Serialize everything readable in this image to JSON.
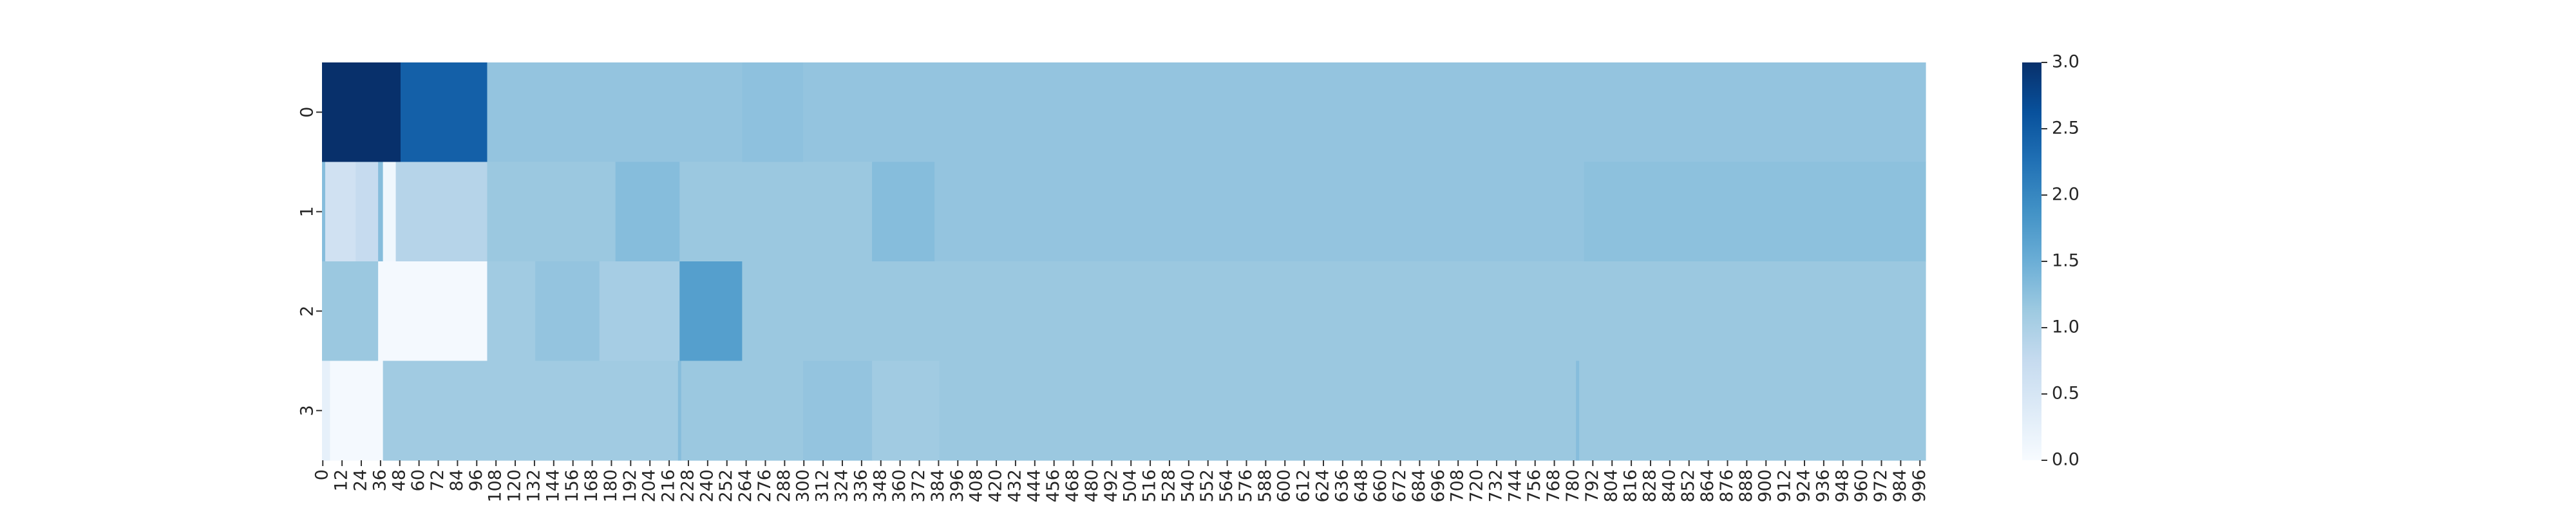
{
  "chart_data": {
    "type": "heatmap",
    "title": "",
    "xlabel": "",
    "ylabel": "",
    "rows": [
      "0",
      "1",
      "2",
      "3"
    ],
    "n_columns": 1000,
    "x_tick_step": 12,
    "x_tick_labels": [
      "0",
      "12",
      "24",
      "36",
      "48",
      "60",
      "72",
      "84",
      "96",
      "108",
      "120",
      "132",
      "144",
      "156",
      "168",
      "180",
      "192",
      "204",
      "216",
      "228",
      "240",
      "252",
      "264",
      "276",
      "288",
      "300",
      "312",
      "324",
      "336",
      "348",
      "360",
      "372",
      "384",
      "396",
      "408",
      "420",
      "432",
      "444",
      "456",
      "468",
      "480",
      "492",
      "504",
      "516",
      "528",
      "540",
      "552",
      "564",
      "576",
      "588",
      "600",
      "612",
      "624",
      "636",
      "648",
      "660",
      "672",
      "684",
      "696",
      "708",
      "720",
      "732",
      "744",
      "756",
      "768",
      "780",
      "792",
      "804",
      "816",
      "828",
      "840",
      "852",
      "864",
      "876",
      "888",
      "900",
      "912",
      "924",
      "936",
      "948",
      "960",
      "972",
      "984",
      "996"
    ],
    "colormap": "Blues",
    "vmin": 0,
    "vmax": 3.0,
    "colorbar_ticks": [
      "0.0",
      "0.5",
      "1.0",
      "1.5",
      "2.0",
      "2.5",
      "3.0"
    ],
    "row_segments": [
      [
        {
          "from": 0,
          "to": 49,
          "value": 3.0
        },
        {
          "from": 49,
          "to": 103,
          "value": 2.45
        },
        {
          "from": 103,
          "to": 262,
          "value": 1.2
        },
        {
          "from": 262,
          "to": 300,
          "value": 1.24
        },
        {
          "from": 300,
          "to": 1000,
          "value": 1.2
        }
      ],
      [
        {
          "from": 0,
          "to": 2,
          "value": 1.3
        },
        {
          "from": 2,
          "to": 21,
          "value": 0.6
        },
        {
          "from": 21,
          "to": 35,
          "value": 0.75
        },
        {
          "from": 35,
          "to": 38,
          "value": 1.3
        },
        {
          "from": 38,
          "to": 46,
          "value": 0.1
        },
        {
          "from": 46,
          "to": 103,
          "value": 0.9
        },
        {
          "from": 103,
          "to": 183,
          "value": 1.15
        },
        {
          "from": 183,
          "to": 223,
          "value": 1.3
        },
        {
          "from": 223,
          "to": 343,
          "value": 1.15
        },
        {
          "from": 343,
          "to": 382,
          "value": 1.3
        },
        {
          "from": 382,
          "to": 787,
          "value": 1.2
        },
        {
          "from": 787,
          "to": 1000,
          "value": 1.25
        }
      ],
      [
        {
          "from": 0,
          "to": 35,
          "value": 1.15
        },
        {
          "from": 35,
          "to": 103,
          "value": 0.05
        },
        {
          "from": 103,
          "to": 133,
          "value": 1.1
        },
        {
          "from": 133,
          "to": 173,
          "value": 1.2
        },
        {
          "from": 173,
          "to": 223,
          "value": 1.05
        },
        {
          "from": 223,
          "to": 262,
          "value": 1.7
        },
        {
          "from": 262,
          "to": 1000,
          "value": 1.15
        }
      ],
      [
        {
          "from": 0,
          "to": 5,
          "value": 0.25
        },
        {
          "from": 5,
          "to": 38,
          "value": 0.05
        },
        {
          "from": 38,
          "to": 222,
          "value": 1.1
        },
        {
          "from": 222,
          "to": 224,
          "value": 1.3
        },
        {
          "from": 224,
          "to": 300,
          "value": 1.15
        },
        {
          "from": 300,
          "to": 343,
          "value": 1.2
        },
        {
          "from": 343,
          "to": 385,
          "value": 1.1
        },
        {
          "from": 385,
          "to": 782,
          "value": 1.15
        },
        {
          "from": 782,
          "to": 784,
          "value": 1.3
        },
        {
          "from": 784,
          "to": 1000,
          "value": 1.15
        }
      ]
    ]
  }
}
